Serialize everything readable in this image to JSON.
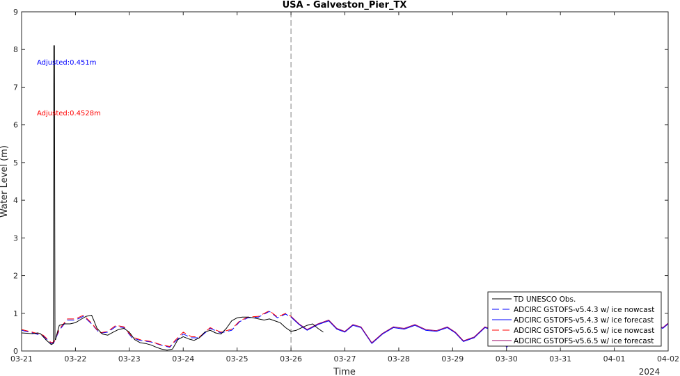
{
  "chart_data": {
    "type": "line",
    "title": "USA - Galveston_Pier_TX",
    "xlabel": "Time",
    "ylabel": "Water Level (m)",
    "year_label": "2024",
    "xlim": [
      "03-21",
      "04-02"
    ],
    "ylim": [
      0,
      9
    ],
    "x_ticks": [
      "03-21",
      "03-22",
      "03-23",
      "03-24",
      "03-25",
      "03-26",
      "03-27",
      "03-28",
      "03-29",
      "03-30",
      "03-31",
      "04-01",
      "04-02"
    ],
    "y_ticks": [
      "0",
      "1",
      "2",
      "3",
      "4",
      "5",
      "6",
      "7",
      "8",
      "9"
    ],
    "nowcast_forecast_divider": "03-26",
    "annotations": [
      {
        "text": "Adjusted:0.451m",
        "color": "#0000ff"
      },
      {
        "text": "Adjusted:0.4528m",
        "color": "#ff0000"
      }
    ],
    "legend_position": "bottom-right",
    "series": [
      {
        "name": "TD UNESCO Obs.",
        "color": "#000000",
        "style": "solid",
        "x_days_from_03_21": [
          0,
          0.1,
          0.2,
          0.3,
          0.35,
          0.45,
          0.55,
          0.59,
          0.6,
          0.61,
          0.62,
          0.63,
          0.64,
          0.65,
          0.7,
          0.8,
          0.9,
          1.0,
          1.1,
          1.2,
          1.3,
          1.35,
          1.4,
          1.5,
          1.6,
          1.7,
          1.8,
          1.9,
          2.0,
          2.1,
          2.2,
          2.3,
          2.4,
          2.5,
          2.6,
          2.7,
          2.8,
          2.9,
          3.0,
          3.1,
          3.2,
          3.3,
          3.4,
          3.5,
          3.6,
          3.7,
          3.8,
          3.9,
          4.0,
          4.1,
          4.2,
          4.3,
          4.4,
          4.5,
          4.6,
          4.7,
          4.8,
          4.9,
          5.0,
          5.1,
          5.2,
          5.3,
          5.4,
          5.5,
          5.6
        ],
        "values": [
          0.48,
          0.47,
          0.46,
          0.48,
          0.46,
          0.3,
          0.17,
          0.2,
          8.1,
          8.1,
          0.3,
          0.3,
          0.35,
          0.42,
          0.68,
          0.72,
          0.72,
          0.75,
          0.84,
          0.92,
          0.95,
          0.78,
          0.6,
          0.45,
          0.42,
          0.5,
          0.57,
          0.6,
          0.5,
          0.3,
          0.22,
          0.2,
          0.16,
          0.1,
          0.05,
          0.02,
          0.05,
          0.3,
          0.38,
          0.32,
          0.28,
          0.35,
          0.5,
          0.55,
          0.48,
          0.45,
          0.6,
          0.8,
          0.88,
          0.9,
          0.9,
          0.88,
          0.85,
          0.82,
          0.85,
          0.8,
          0.75,
          0.62,
          0.52,
          0.55,
          0.62,
          0.68,
          0.72,
          0.6,
          0.5
        ]
      },
      {
        "name": "ADCIRC GSTOFS-v5.4.3 w/ ice nowcast",
        "color": "#0000ff",
        "style": "dashed",
        "x_days_from_03_21": [
          0,
          0.2,
          0.4,
          0.55,
          0.6,
          0.7,
          0.85,
          1.0,
          1.15,
          1.3,
          1.45,
          1.6,
          1.75,
          1.9,
          2.05,
          2.2,
          2.4,
          2.6,
          2.75,
          2.85,
          3.0,
          3.15,
          3.3,
          3.5,
          3.7,
          3.9,
          4.05,
          4.2,
          4.4,
          4.6,
          4.75,
          4.9,
          5.0
        ],
        "values": [
          0.55,
          0.48,
          0.4,
          0.2,
          0.22,
          0.55,
          0.82,
          0.82,
          0.92,
          0.72,
          0.47,
          0.5,
          0.65,
          0.62,
          0.35,
          0.28,
          0.24,
          0.15,
          0.1,
          0.25,
          0.45,
          0.35,
          0.35,
          0.6,
          0.48,
          0.55,
          0.78,
          0.88,
          0.9,
          1.05,
          0.88,
          0.98,
          0.9
        ]
      },
      {
        "name": "ADCIRC GSTOFS-v5.4.3 w/ ice forecast",
        "color": "#0000ff",
        "style": "solid",
        "x_days_from_03_21": [
          5.0,
          5.15,
          5.3,
          5.5,
          5.7,
          5.85,
          6.0,
          6.15,
          6.3,
          6.5,
          6.7,
          6.9,
          7.1,
          7.3,
          7.5,
          7.7,
          7.9,
          8.05,
          8.2,
          8.4,
          8.6,
          8.75,
          8.85,
          9.0,
          9.15,
          9.3,
          9.5,
          9.7,
          9.9,
          10.1,
          10.3,
          10.5,
          10.7,
          10.9,
          11.1,
          11.3,
          11.5,
          11.7,
          11.9,
          12.0
        ],
        "values": [
          0.9,
          0.7,
          0.55,
          0.7,
          0.8,
          0.58,
          0.5,
          0.68,
          0.62,
          0.2,
          0.45,
          0.62,
          0.58,
          0.68,
          0.55,
          0.52,
          0.62,
          0.48,
          0.25,
          0.35,
          0.62,
          0.55,
          0.55,
          0.1,
          0.3,
          0.55,
          0.7,
          0.35,
          0.6,
          0.18,
          0.6,
          0.5,
          0.35,
          0.55,
          0.45,
          0.2,
          0.55,
          0.72,
          0.6,
          0.72
        ]
      },
      {
        "name": "ADCIRC GSTOFS-v5.6.5 w/ ice nowcast",
        "color": "#ff0000",
        "style": "dashed",
        "x_days_from_03_21": [
          0,
          0.2,
          0.4,
          0.55,
          0.6,
          0.7,
          0.85,
          1.0,
          1.15,
          1.3,
          1.45,
          1.6,
          1.75,
          1.9,
          2.05,
          2.2,
          2.4,
          2.6,
          2.75,
          2.85,
          3.0,
          3.15,
          3.3,
          3.5,
          3.7,
          3.9,
          4.05,
          4.2,
          4.4,
          4.6,
          4.75,
          4.9,
          5.0
        ],
        "values": [
          0.57,
          0.5,
          0.42,
          0.22,
          0.24,
          0.58,
          0.85,
          0.85,
          0.95,
          0.74,
          0.48,
          0.52,
          0.68,
          0.64,
          0.37,
          0.3,
          0.25,
          0.16,
          0.12,
          0.28,
          0.5,
          0.38,
          0.37,
          0.62,
          0.5,
          0.58,
          0.8,
          0.9,
          0.92,
          1.07,
          0.9,
          1.0,
          0.92
        ]
      },
      {
        "name": "ADCIRC GSTOFS-v5.6.5 w/ ice forecast",
        "color": "#990066",
        "style": "solid",
        "x_days_from_03_21": [
          5.0,
          5.15,
          5.3,
          5.5,
          5.7,
          5.85,
          6.0,
          6.15,
          6.3,
          6.5,
          6.7,
          6.9,
          7.1,
          7.3,
          7.5,
          7.7,
          7.9,
          8.05,
          8.2,
          8.4,
          8.6,
          8.75,
          8.85,
          9.0,
          9.15,
          9.3,
          9.5,
          9.7,
          9.9,
          10.1,
          10.3,
          10.5,
          10.7,
          10.9,
          11.1,
          11.3,
          11.5,
          11.7,
          11.9,
          12.0
        ],
        "values": [
          0.92,
          0.72,
          0.57,
          0.72,
          0.82,
          0.6,
          0.52,
          0.7,
          0.64,
          0.22,
          0.47,
          0.64,
          0.6,
          0.7,
          0.57,
          0.54,
          0.64,
          0.5,
          0.27,
          0.37,
          0.64,
          0.57,
          0.57,
          0.12,
          0.32,
          0.57,
          0.72,
          0.37,
          0.62,
          0.2,
          0.62,
          0.52,
          0.37,
          0.57,
          0.47,
          0.22,
          0.57,
          0.74,
          0.62,
          0.74
        ]
      }
    ]
  }
}
